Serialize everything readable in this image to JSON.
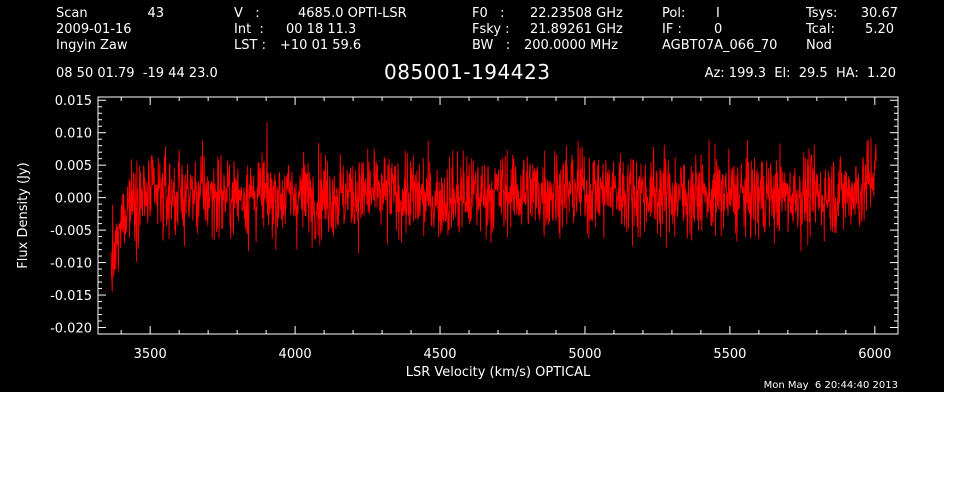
{
  "header": {
    "scan_label": "Scan",
    "scan_number": "43",
    "date": "2009-01-16",
    "observer": "Ingyin Zaw",
    "v_label": "V   :",
    "v_value": "4685.0 OPTI-LSR",
    "int_label": "Int  :",
    "int_value": "00 18 11.3",
    "lst_label": "LST :",
    "lst_value": "+10 01 59.6",
    "f0_label": "F0   :",
    "f0_value": "22.23508 GHz",
    "fsky_label": "Fsky :",
    "fsky_value": "21.89261 GHz",
    "bw_label": "BW   :",
    "bw_value": "200.0000 MHz",
    "pol_label": "Pol:",
    "pol_value": "I",
    "if_label": "IF :",
    "if_value": "0",
    "project": "AGBT07A_066_70",
    "tsys_label": "Tsys:",
    "tsys_value": "30.67",
    "tcal_label": "Tcal:",
    "tcal_value": "5.20",
    "mode": "Nod",
    "coords": "08 50 01.79  -19 44 23.0",
    "source": "085001-194423",
    "az_el_ha": "Az: 199.3  El:  29.5  HA:  1.20"
  },
  "timestamp": "Mon May  6 20:44:40 2013",
  "colors": {
    "background": "#000000",
    "axes": "#ffffff",
    "spectrum": "#ff0000"
  },
  "chart_data": {
    "type": "line",
    "title": "085001-194423",
    "xlabel": "LSR Velocity (km/s) OPTICAL",
    "ylabel": "Flux Density (Jy)",
    "xlim": [
      3320,
      6080
    ],
    "ylim": [
      -0.021,
      0.0155
    ],
    "x_ticks": [
      3500,
      4000,
      4500,
      5000,
      5500,
      6000
    ],
    "x_tick_labels": [
      "3500",
      "4000",
      "4500",
      "5000",
      "5500",
      "6000"
    ],
    "y_ticks": [
      0.015,
      0.01,
      0.005,
      0.0,
      -0.005,
      -0.01,
      -0.015,
      -0.02
    ],
    "y_tick_labels": [
      "0.015",
      "0.010",
      "0.005",
      "0.000",
      "-0.005",
      "-0.010",
      "-0.015",
      "-0.020"
    ],
    "grid": false,
    "series": [
      {
        "color": "#ff0000",
        "x_range": [
          3365,
          6005
        ],
        "noise_rms_jy": 0.0032,
        "baseline_profile": {
          "x": [
            3365,
            3380,
            3395,
            3410,
            3430,
            3600,
            4000,
            4300,
            4500,
            4700,
            5000,
            5300,
            5500,
            5800,
            5950,
            5990,
            6000,
            6005
          ],
          "y": [
            -0.011,
            -0.009,
            -0.006,
            -0.002,
            0.0,
            0.0005,
            0.0003,
            0.0006,
            -0.0002,
            0.0008,
            0.0012,
            0.0004,
            0.0003,
            0.0004,
            0.001,
            0.003,
            0.006,
            0.004
          ]
        }
      }
    ]
  }
}
